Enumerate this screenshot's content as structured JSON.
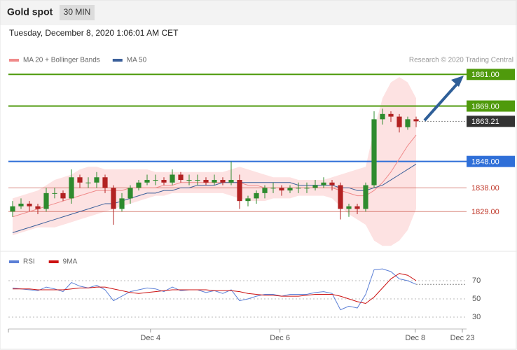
{
  "header": {
    "title": "Gold spot",
    "interval": "30 MIN",
    "timestamp": "Tuesday, December 8, 2020 1:06:01 AM CET"
  },
  "chart_data": [
    {
      "type": "candlestick",
      "credit": "Research © 2020 Trading Central",
      "xlim": [
        -0.5,
        54
      ],
      "ylim": [
        1815,
        1884
      ],
      "up_color": "#2e8b2e",
      "down_color": "#b22222",
      "open": [
        1829,
        1831,
        1832,
        1831,
        1830,
        1836,
        1836,
        1834,
        1842,
        1840,
        1840,
        1842,
        1838,
        1830,
        1834,
        1838,
        1840,
        1841,
        1841,
        1840,
        1843,
        1841,
        1841,
        1841,
        1840,
        1841,
        1840,
        1841,
        1833,
        1834,
        1836,
        1838,
        1838,
        1837,
        1838,
        1838,
        1838,
        1839,
        1840,
        1839,
        1830,
        1831,
        1830,
        1839,
        1864,
        1866,
        1865,
        1861,
        1864
      ],
      "high": [
        1833,
        1834,
        1833,
        1832,
        1838,
        1838,
        1837,
        1845,
        1843,
        1842,
        1844,
        1843,
        1839,
        1836,
        1839,
        1841,
        1843,
        1843,
        1842,
        1845,
        1844,
        1843,
        1843,
        1842,
        1843,
        1842,
        1848,
        1843,
        1835,
        1837,
        1839,
        1840,
        1839,
        1839,
        1840,
        1840,
        1841,
        1842,
        1841,
        1840,
        1832,
        1832,
        1840,
        1867,
        1868,
        1867,
        1866,
        1865,
        1865
      ],
      "low": [
        1827,
        1830,
        1829,
        1828,
        1829,
        1834,
        1833,
        1832,
        1838,
        1838,
        1838,
        1836,
        1824,
        1829,
        1832,
        1837,
        1839,
        1839,
        1839,
        1839,
        1840,
        1839,
        1839,
        1839,
        1839,
        1839,
        1839,
        1830,
        1831,
        1832,
        1834,
        1836,
        1835,
        1836,
        1836,
        1836,
        1837,
        1838,
        1837,
        1826,
        1827,
        1828,
        1829,
        1838,
        1862,
        1863,
        1859,
        1860,
        1861
      ],
      "close": [
        1831,
        1832,
        1831,
        1830,
        1836,
        1836,
        1834,
        1842,
        1840,
        1840,
        1842,
        1838,
        1830,
        1834,
        1838,
        1840,
        1841,
        1841,
        1840,
        1843,
        1841,
        1841,
        1841,
        1840,
        1841,
        1840,
        1841,
        1833,
        1834,
        1836,
        1838,
        1838,
        1837,
        1838,
        1838,
        1838,
        1839,
        1840,
        1839,
        1830,
        1831,
        1830,
        1839,
        1864,
        1866,
        1865,
        1861,
        1864,
        1863.21
      ],
      "series": [
        {
          "name": "MA 20 + Bollinger Bands",
          "color": "#f08a8a",
          "band_color": "#fde2e2",
          "values": [
            1827,
            1828,
            1829,
            1830,
            1831,
            1832,
            1833,
            1834,
            1835,
            1836,
            1837,
            1837,
            1837,
            1837,
            1838,
            1838,
            1838,
            1838,
            1839,
            1839,
            1840,
            1840,
            1840,
            1840,
            1840,
            1840,
            1840,
            1840,
            1839,
            1839,
            1838,
            1838,
            1838,
            1838,
            1838,
            1838,
            1838,
            1838,
            1838,
            1837,
            1836,
            1835,
            1835,
            1837,
            1840,
            1844,
            1849,
            1854,
            1858
          ],
          "upper": [
            1834,
            1835,
            1836,
            1837,
            1839,
            1841,
            1842,
            1843,
            1845,
            1846,
            1846,
            1845,
            1845,
            1845,
            1845,
            1845,
            1845,
            1844,
            1844,
            1844,
            1844,
            1844,
            1844,
            1844,
            1844,
            1844,
            1845,
            1846,
            1845,
            1844,
            1843,
            1842,
            1842,
            1842,
            1841,
            1841,
            1841,
            1841,
            1842,
            1843,
            1844,
            1845,
            1846,
            1860,
            1872,
            1878,
            1880,
            1878,
            1872
          ],
          "lower": [
            1820,
            1821,
            1822,
            1823,
            1823,
            1823,
            1824,
            1825,
            1826,
            1827,
            1828,
            1829,
            1830,
            1831,
            1832,
            1833,
            1834,
            1835,
            1835,
            1836,
            1836,
            1836,
            1836,
            1836,
            1836,
            1836,
            1835,
            1834,
            1833,
            1833,
            1833,
            1834,
            1834,
            1834,
            1835,
            1835,
            1835,
            1835,
            1834,
            1831,
            1828,
            1826,
            1824,
            1818,
            1816,
            1816,
            1818,
            1822,
            1830
          ]
        },
        {
          "name": "MA 50",
          "color": "#3a5f9a",
          "values": [
            1821,
            1822,
            1823,
            1824,
            1825,
            1826,
            1827,
            1828,
            1829,
            1830,
            1831,
            1832,
            1832,
            1833,
            1834,
            1835,
            1836,
            1836,
            1837,
            1837,
            1838,
            1838,
            1839,
            1839,
            1839,
            1840,
            1840,
            1840,
            1840,
            1840,
            1840,
            1840,
            1840,
            1840,
            1839,
            1839,
            1839,
            1839,
            1839,
            1838,
            1838,
            1837,
            1837,
            1838,
            1839,
            1841,
            1843,
            1845,
            1847
          ]
        }
      ],
      "levels": [
        {
          "value": 1881,
          "label": "1881.00",
          "color": "#4f9a0c",
          "boxed": true
        },
        {
          "value": 1869,
          "label": "1869.00",
          "color": "#4f9a0c",
          "boxed": true
        },
        {
          "value": 1863.21,
          "color": "#333333",
          "boxed": true,
          "dotted": true
        },
        {
          "value": 1848,
          "label": "1848.00",
          "color": "#2f6fd8",
          "boxed": true
        },
        {
          "value": 1838,
          "label": "1838.00",
          "color": "#c0392b",
          "boxed": false
        },
        {
          "value": 1829,
          "label": "1829.00",
          "color": "#c0392b",
          "boxed": false
        }
      ]
    },
    {
      "type": "line",
      "xlim": [
        -0.5,
        54
      ],
      "ylim": [
        20,
        100
      ],
      "yticks": [
        30,
        50,
        70
      ],
      "xticks": [
        {
          "value": 16.4,
          "label": "Dec 4"
        },
        {
          "value": 31.8,
          "label": "Dec 6"
        },
        {
          "value": 47.9,
          "label": "Dec 8"
        },
        {
          "value": 53.5,
          "label": "Dec 23"
        }
      ],
      "series": [
        {
          "name": "RSI",
          "color": "#5b7fd6",
          "values": [
            62,
            61,
            60,
            59,
            63,
            61,
            58,
            68,
            64,
            62,
            65,
            60,
            48,
            53,
            58,
            60,
            62,
            61,
            58,
            63,
            59,
            60,
            60,
            57,
            59,
            56,
            60,
            48,
            50,
            53,
            55,
            55,
            53,
            55,
            55,
            55,
            57,
            58,
            56,
            38,
            42,
            40,
            55,
            82,
            83,
            80,
            72,
            70,
            66
          ]
        },
        {
          "name": "9MA",
          "color": "#cc1111",
          "values": [
            61,
            61,
            61,
            60,
            60,
            60,
            60,
            61,
            62,
            62,
            63,
            63,
            61,
            59,
            57,
            56,
            57,
            58,
            59,
            60,
            60,
            60,
            60,
            60,
            59,
            59,
            59,
            58,
            56,
            55,
            54,
            54,
            53,
            53,
            53,
            54,
            55,
            55,
            55,
            53,
            50,
            47,
            45,
            52,
            62,
            72,
            78,
            76,
            70
          ]
        }
      ]
    }
  ]
}
